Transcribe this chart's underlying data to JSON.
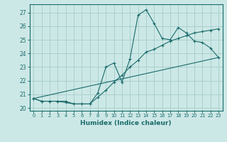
{
  "xlabel": "Humidex (Indice chaleur)",
  "background_color": "#cce8e6",
  "grid_color": "#a8d0ce",
  "line_color": "#1a6b6b",
  "xlim": [
    -0.5,
    23.5
  ],
  "ylim": [
    19.8,
    27.6
  ],
  "yticks": [
    20,
    21,
    22,
    23,
    24,
    25,
    26,
    27
  ],
  "xticks": [
    0,
    1,
    2,
    3,
    4,
    5,
    6,
    7,
    8,
    9,
    10,
    11,
    12,
    13,
    14,
    15,
    16,
    17,
    18,
    19,
    20,
    21,
    22,
    23
  ],
  "line1_x": [
    0,
    1,
    2,
    3,
    4,
    5,
    6,
    7,
    8,
    9,
    10,
    11,
    12,
    13,
    14,
    15,
    16,
    17,
    18,
    19,
    20,
    21,
    22,
    23
  ],
  "line1_y": [
    20.7,
    20.5,
    20.5,
    20.5,
    20.5,
    20.3,
    20.3,
    20.3,
    21.1,
    23.0,
    23.3,
    21.9,
    23.6,
    26.8,
    27.2,
    26.2,
    25.1,
    25.0,
    25.9,
    25.5,
    24.9,
    24.8,
    24.4,
    23.7
  ],
  "line2_x": [
    0,
    1,
    2,
    3,
    4,
    5,
    6,
    7,
    8,
    9,
    10,
    11,
    12,
    13,
    14,
    15,
    16,
    17,
    18,
    19,
    20,
    21,
    22,
    23
  ],
  "line2_y": [
    20.7,
    20.5,
    20.5,
    20.5,
    20.4,
    20.3,
    20.3,
    20.3,
    20.8,
    21.3,
    21.9,
    22.4,
    23.0,
    23.5,
    24.1,
    24.3,
    24.6,
    24.9,
    25.1,
    25.3,
    25.5,
    25.6,
    25.7,
    25.8
  ],
  "line3_x": [
    0,
    23
  ],
  "line3_y": [
    20.7,
    23.7
  ]
}
